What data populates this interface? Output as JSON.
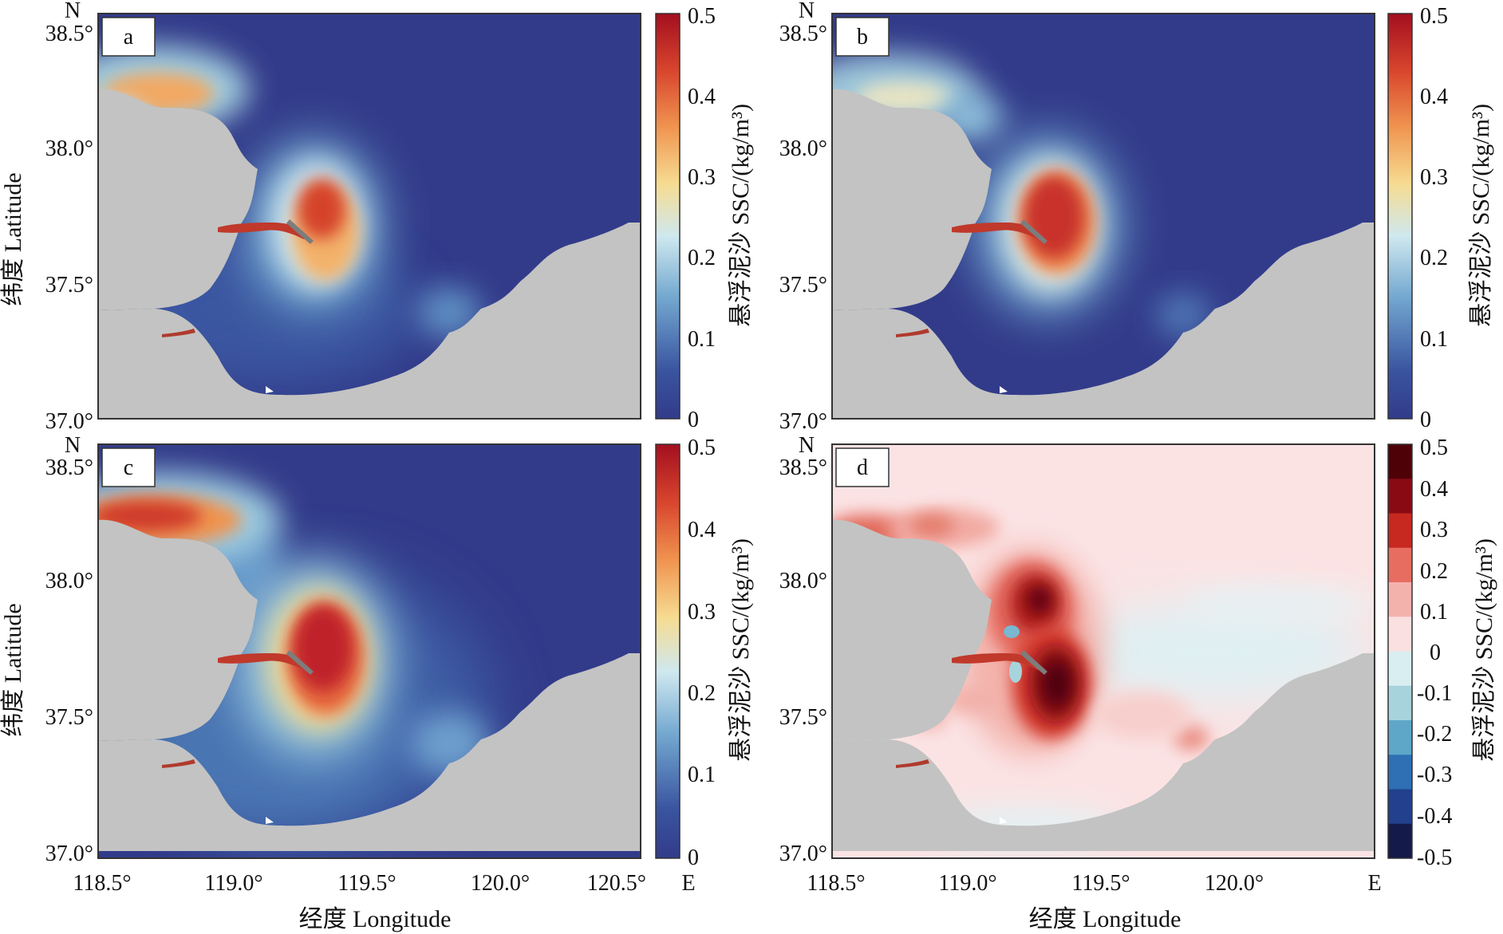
{
  "chart_data": [
    {
      "type": "heatmap",
      "panel_label": "a",
      "x_ticks": [
        "118.5°",
        "119.0°",
        "119.5°",
        "120.0°",
        "120.5°"
      ],
      "x_unit": "E",
      "y_ticks": [
        "38.5°",
        "38.0°",
        "37.5°",
        "37.0°"
      ],
      "y_unit": "N",
      "ylabel": "纬度 Latitude",
      "xlabel": "",
      "xlim": [
        118.5,
        120.5
      ],
      "ylim": [
        37.0,
        38.5
      ],
      "colorbar": {
        "label": "悬浮泥沙 SSC/(kg/m³)",
        "range": [
          0,
          0.5
        ],
        "ticks": [
          "0.5",
          "0.4",
          "0.3",
          "0.2",
          "0.1",
          "0"
        ]
      }
    },
    {
      "type": "heatmap",
      "panel_label": "b",
      "x_ticks": [],
      "y_ticks": [
        "38.5°",
        "38.0°",
        "37.5°",
        "37.0°"
      ],
      "y_unit": "N",
      "ylabel": "",
      "xlabel": "",
      "xlim": [
        118.5,
        120.5
      ],
      "ylim": [
        37.0,
        38.5
      ],
      "colorbar": {
        "label": "悬浮泥沙 SSC/(kg/m³)",
        "range": [
          0,
          0.5
        ],
        "ticks": [
          "0.5",
          "0.4",
          "0.3",
          "0.2",
          "0.1",
          "0"
        ]
      }
    },
    {
      "type": "heatmap",
      "panel_label": "c",
      "x_ticks": [
        "118.5°",
        "119.0°",
        "119.5°",
        "120.0°",
        "120.5°"
      ],
      "x_unit": "E",
      "y_ticks": [
        "38.5°",
        "38.0°",
        "37.5°",
        "37.0°"
      ],
      "y_unit": "N",
      "ylabel": "纬度 Latitude",
      "xlabel": "经度 Longitude",
      "xlim": [
        118.5,
        120.5
      ],
      "ylim": [
        37.0,
        38.5
      ],
      "colorbar": {
        "label": "悬浮泥沙 SSC/(kg/m³)",
        "range": [
          0,
          0.5
        ],
        "ticks": [
          "0.5",
          "0.4",
          "0.3",
          "0.2",
          "0.1",
          "0"
        ]
      }
    },
    {
      "type": "heatmap",
      "panel_label": "d",
      "x_ticks": [
        "118.5°",
        "119.0°",
        "119.5°",
        "120.0°"
      ],
      "x_unit": "E",
      "y_ticks": [
        "38.5°",
        "38.0°",
        "37.5°",
        "37.0°"
      ],
      "y_unit": "N",
      "ylabel": "",
      "xlabel": "经度 Longitude",
      "xlim": [
        118.5,
        120.5
      ],
      "ylim": [
        37.0,
        38.5
      ],
      "colorbar": {
        "label": "悬浮泥沙 SSC/(kg/m³)",
        "range": [
          -0.5,
          0.5
        ],
        "ticks": [
          "0.5",
          "0.4",
          "0.3",
          "0.2",
          "0.1",
          "0",
          "-0.1",
          "-0.2",
          "-0.3",
          "-0.4",
          "-0.5"
        ]
      }
    }
  ],
  "colors": {
    "sea_low": "#323b8a",
    "land": "#c3c3c3",
    "seq_scale": [
      "#323b8a",
      "#3f62a8",
      "#7fb2d4",
      "#d6ebf0",
      "#f4d88e",
      "#ef8a4d",
      "#d5432c",
      "#a30f1f"
    ],
    "div_scale": [
      "#141a4a",
      "#22408d",
      "#2f6fb3",
      "#5ea7c9",
      "#a7d3dd",
      "#d9eef0",
      "#fbe0e1",
      "#f4b2ad",
      "#e76d61",
      "#c7281f",
      "#8a0a14",
      "#4e0208"
    ]
  }
}
